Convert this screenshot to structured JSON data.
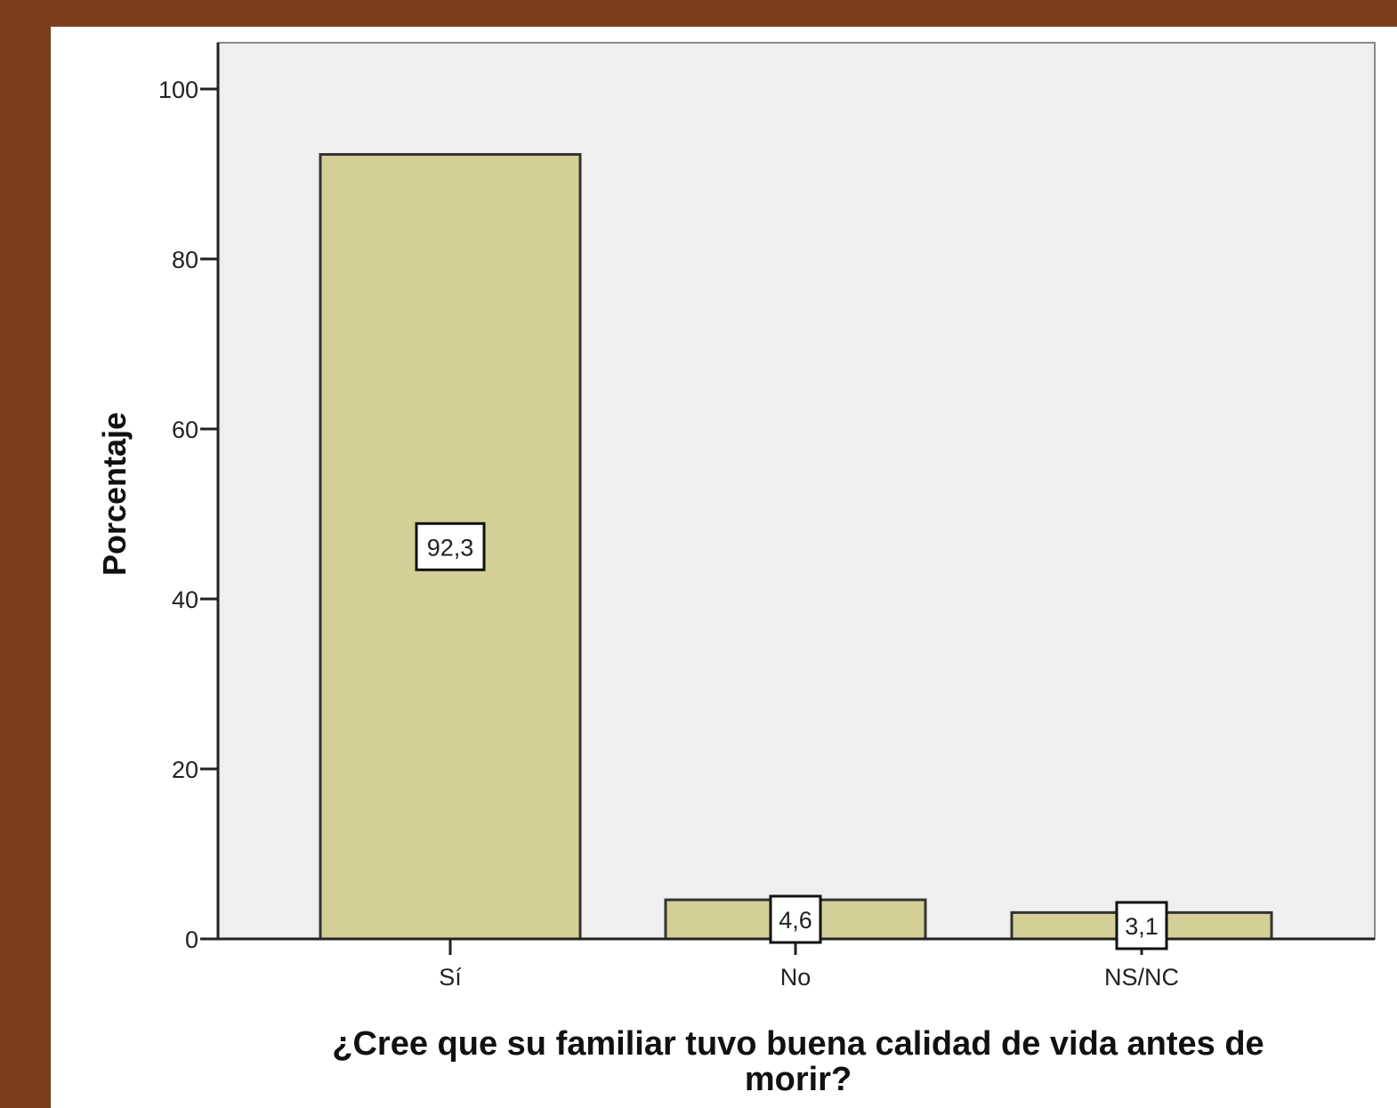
{
  "colors": {
    "frame": "#7a3e1b",
    "panel": "#ffffff",
    "plot_area": "#efefef",
    "bar_fill": "#d4cf96",
    "bar_stroke": "#333333",
    "axis": "#222222"
  },
  "chart_data": {
    "type": "bar",
    "categories": [
      "Sí",
      "No",
      "NS/NC"
    ],
    "values": [
      92.3,
      4.6,
      3.1
    ],
    "value_labels": [
      "92,3",
      "4,6",
      "3,1"
    ],
    "title": "",
    "xlabel": "¿Cree que su familiar tuvo buena calidad de vida antes de morir?",
    "ylabel": "Porcentaje",
    "ylim": [
      0,
      100
    ],
    "yticks": [
      0,
      20,
      40,
      60,
      80,
      100
    ],
    "grid": false,
    "legend": "none"
  }
}
